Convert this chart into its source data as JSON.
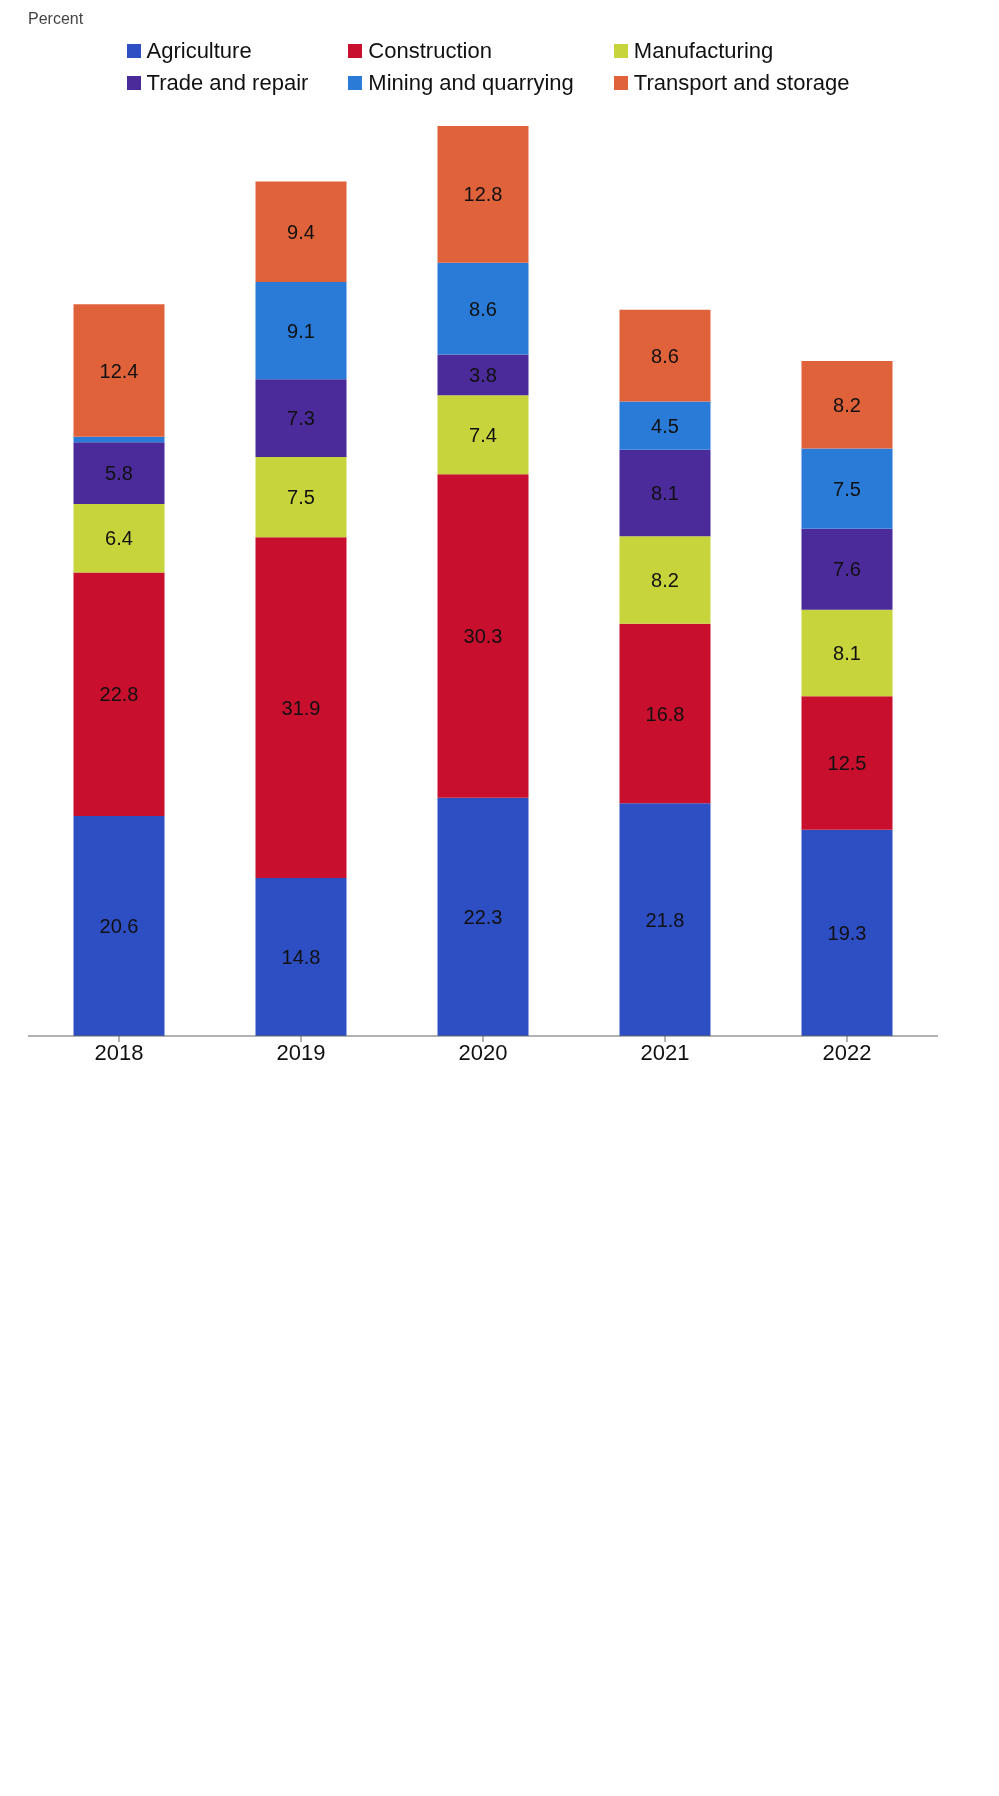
{
  "chart_data": {
    "type": "bar",
    "annotations": [
      "Percent"
    ],
    "categories": [
      "2018",
      "2019",
      "2020",
      "2021",
      "2022"
    ],
    "stacked": true,
    "legend": "top",
    "grid": false,
    "series": [
      {
        "name": "Agriculture",
        "color": "#2e4fc4",
        "values": [
          20.6,
          14.8,
          22.3,
          21.8,
          19.3
        ],
        "value_labels": [
          "20.6",
          "14.8",
          "22.3",
          "21.8",
          "19.3"
        ]
      },
      {
        "name": "Construction",
        "color": "#c8102e",
        "values": [
          22.8,
          31.9,
          30.3,
          16.8,
          12.5
        ],
        "value_labels": [
          "22.8",
          "31.9",
          "30.3",
          "16.8",
          "12.5"
        ]
      },
      {
        "name": "Manufacturing",
        "color": "#c8d43c",
        "values": [
          6.4,
          7.5,
          7.4,
          8.2,
          8.1
        ],
        "value_labels": [
          "6.4",
          "7.5",
          "7.4",
          "8.2",
          "8.1"
        ]
      },
      {
        "name": "Trade and repair",
        "color": "#4b2a9a",
        "values": [
          5.8,
          7.3,
          3.8,
          8.1,
          7.6
        ],
        "value_labels": [
          "5.8",
          "7.3",
          "3.8",
          "8.1",
          "7.6"
        ]
      },
      {
        "name": "Mining and quarrying",
        "color": "#2a7ad8",
        "values": [
          0.5,
          9.1,
          8.6,
          4.5,
          7.5
        ],
        "value_labels": [
          null,
          "9.1",
          "8.6",
          "4.5",
          "7.5"
        ]
      },
      {
        "name": "Transport and storage",
        "color": "#e0623a",
        "values": [
          12.4,
          9.4,
          12.8,
          8.6,
          8.2
        ],
        "value_labels": [
          "12.4",
          "9.4",
          "12.8",
          "8.6",
          "8.2"
        ]
      }
    ]
  }
}
